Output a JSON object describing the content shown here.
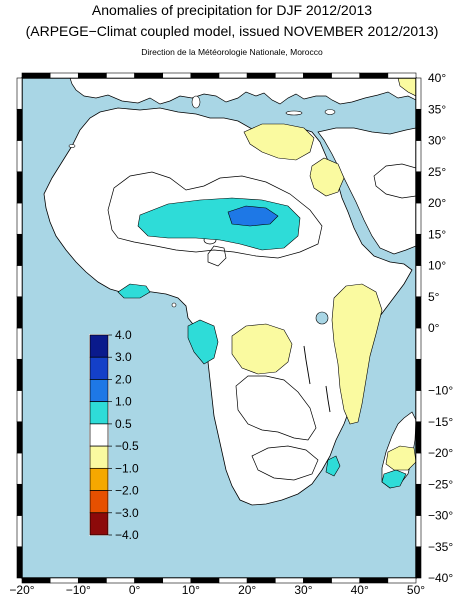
{
  "header": {
    "title_line1": "Anomalies of precipitation for DJF 2012/2013",
    "title_line2": "(ARPEGE−Climat coupled model, issued NOVEMBER 2012/2013)",
    "credit": "Direction de la Météorologie Nationale, Morocco"
  },
  "map": {
    "lon_range": [
      -20,
      50
    ],
    "lat_range": [
      -40,
      40
    ],
    "lon_ticks": [
      "−20°",
      "−10°",
      "0°",
      "10°",
      "20°",
      "30°",
      "40°",
      "50°"
    ],
    "lat_ticks": [
      "40°",
      "35°",
      "30°",
      "25°",
      "20°",
      "15°",
      "10°",
      "5°",
      "0°",
      "−10°",
      "−15°",
      "−20°",
      "−25°",
      "−30°",
      "−35°",
      "−40°"
    ],
    "colors": {
      "ocean": "#a9d6e5",
      "land": "#ffffff",
      "coast": "#000000",
      "frame": "#000000"
    }
  },
  "legend": {
    "labels": [
      "4.0",
      "3.0",
      "2.0",
      "1.0",
      "0.5",
      "−0.5",
      "−1.0",
      "−2.0",
      "−3.0",
      "−4.0"
    ],
    "colors": [
      "#0a1a8c",
      "#1440c8",
      "#1e78e6",
      "#2edcd8",
      "#ffffff",
      "#fafaa0",
      "#f5a800",
      "#e65000",
      "#8c0a0a"
    ]
  }
}
